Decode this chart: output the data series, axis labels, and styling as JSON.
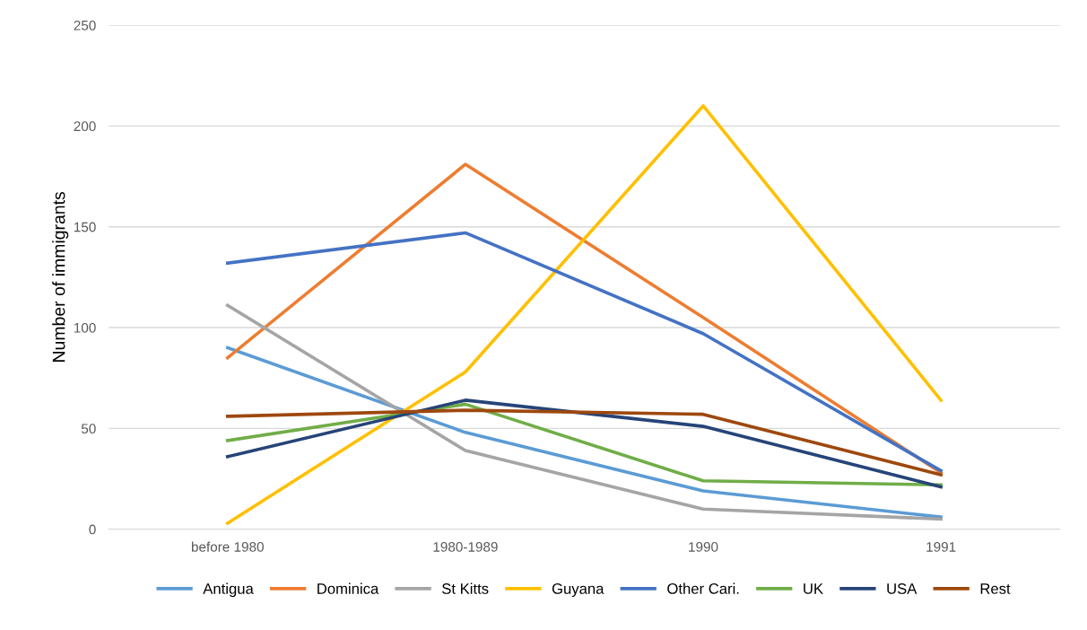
{
  "chart_data": {
    "type": "line",
    "ylabel": "Number of immigrants",
    "categories": [
      "before 1980",
      "1980-1989",
      "1990",
      "1991"
    ],
    "series": [
      {
        "name": "Antigua",
        "color": "#5b9bd5",
        "values": [
          90,
          48,
          19,
          6
        ]
      },
      {
        "name": "Dominica",
        "color": "#ed7d31",
        "values": [
          85,
          181,
          105,
          28
        ]
      },
      {
        "name": "St Kitts",
        "color": "#a5a5a5",
        "values": [
          111,
          39,
          10,
          5
        ]
      },
      {
        "name": "Guyana",
        "color": "#ffc000",
        "values": [
          3,
          78,
          210,
          64
        ]
      },
      {
        "name": "Other Cari.",
        "color": "#4472c4",
        "values": [
          132,
          147,
          97,
          29
        ]
      },
      {
        "name": "UK",
        "color": "#70ad47",
        "values": [
          44,
          62,
          24,
          22
        ]
      },
      {
        "name": "USA",
        "color": "#264478",
        "values": [
          36,
          64,
          51,
          21
        ]
      },
      {
        "name": "Rest",
        "color": "#9e480e",
        "values": [
          56,
          59,
          57,
          27
        ]
      }
    ],
    "ylim": [
      0,
      250
    ],
    "yticks": [
      0,
      50,
      100,
      150,
      200,
      250
    ],
    "grid": "y",
    "legend": "bottom",
    "marker": "none",
    "line_style": "solid"
  }
}
